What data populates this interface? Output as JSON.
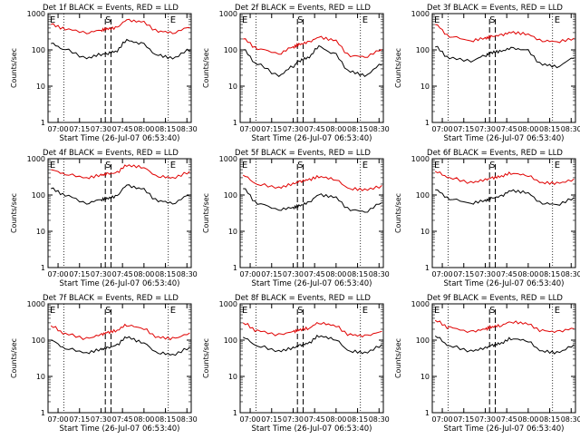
{
  "ylabel": "Counts/sec",
  "xlabel": "Start Time (26-Jul-07 06:53:40)",
  "x_ticks": [
    "07:00",
    "07:15",
    "07:30",
    "07:45",
    "08:00",
    "08:15",
    "08:30"
  ],
  "y_ticks": [
    "1",
    "10",
    "100",
    "1000"
  ],
  "markers": {
    "E": "E",
    "S": "S"
  },
  "colors": {
    "events": "#000000",
    "lld": "#e00000"
  },
  "chart_data": [
    {
      "type": "line",
      "title": "Det 1f BLACK = Events, RED = LLD",
      "ylim": [
        1,
        1000
      ],
      "log_y": true,
      "series": [
        {
          "name": "Events",
          "x": [
            "06:55",
            "07:05",
            "07:20",
            "07:30",
            "07:34",
            "07:40",
            "07:48",
            "07:58",
            "08:10",
            "08:20",
            "08:32"
          ],
          "values": [
            150,
            100,
            60,
            75,
            80,
            90,
            180,
            150,
            70,
            60,
            100
          ]
        },
        {
          "name": "LLD",
          "x": [
            "06:55",
            "07:05",
            "07:20",
            "07:30",
            "07:34",
            "07:40",
            "07:48",
            "07:58",
            "08:10",
            "08:20",
            "08:32"
          ],
          "values": [
            500,
            380,
            300,
            350,
            380,
            400,
            650,
            600,
            330,
            300,
            420
          ]
        }
      ]
    },
    {
      "type": "line",
      "title": "Det 2f BLACK = Events, RED = LLD",
      "ylim": [
        1,
        1000
      ],
      "log_y": true,
      "series": [
        {
          "name": "Events",
          "x": [
            "06:55",
            "07:05",
            "07:20",
            "07:30",
            "07:34",
            "07:40",
            "07:48",
            "07:58",
            "08:10",
            "08:20",
            "08:32"
          ],
          "values": [
            100,
            40,
            20,
            35,
            50,
            60,
            120,
            80,
            25,
            20,
            40
          ]
        },
        {
          "name": "LLD",
          "x": [
            "06:55",
            "07:05",
            "07:20",
            "07:30",
            "07:34",
            "07:40",
            "07:48",
            "07:58",
            "08:10",
            "08:20",
            "08:32"
          ],
          "values": [
            200,
            110,
            80,
            120,
            140,
            160,
            220,
            190,
            70,
            65,
            100
          ]
        }
      ]
    },
    {
      "type": "line",
      "title": "Det 3f BLACK = Events, RED = LLD",
      "ylim": [
        1,
        1000
      ],
      "log_y": true,
      "series": [
        {
          "name": "Events",
          "x": [
            "06:55",
            "07:05",
            "07:20",
            "07:30",
            "07:34",
            "07:40",
            "07:48",
            "07:58",
            "08:10",
            "08:20",
            "08:32"
          ],
          "values": [
            120,
            60,
            50,
            70,
            85,
            90,
            110,
            100,
            40,
            35,
            60
          ]
        },
        {
          "name": "LLD",
          "x": [
            "06:55",
            "07:05",
            "07:20",
            "07:30",
            "07:34",
            "07:40",
            "07:48",
            "07:58",
            "08:10",
            "08:20",
            "08:32"
          ],
          "values": [
            500,
            240,
            180,
            210,
            230,
            250,
            300,
            280,
            180,
            170,
            200
          ]
        }
      ]
    },
    {
      "type": "line",
      "title": "Det 4f BLACK = Events, RED = LLD",
      "ylim": [
        1,
        1000
      ],
      "log_y": true,
      "series": [
        {
          "name": "Events",
          "x": [
            "06:55",
            "07:05",
            "07:20",
            "07:30",
            "07:34",
            "07:40",
            "07:48",
            "07:58",
            "08:10",
            "08:20",
            "08:32"
          ],
          "values": [
            150,
            100,
            60,
            75,
            80,
            90,
            180,
            150,
            70,
            60,
            100
          ]
        },
        {
          "name": "LLD",
          "x": [
            "06:55",
            "07:05",
            "07:20",
            "07:30",
            "07:34",
            "07:40",
            "07:48",
            "07:58",
            "08:10",
            "08:20",
            "08:32"
          ],
          "values": [
            500,
            380,
            300,
            350,
            380,
            400,
            650,
            600,
            330,
            300,
            420
          ]
        }
      ]
    },
    {
      "type": "line",
      "title": "Det 5f BLACK = Events, RED = LLD",
      "ylim": [
        1,
        1000
      ],
      "log_y": true,
      "series": [
        {
          "name": "Events",
          "x": [
            "06:55",
            "07:05",
            "07:20",
            "07:30",
            "07:34",
            "07:40",
            "07:48",
            "07:58",
            "08:10",
            "08:20",
            "08:32"
          ],
          "values": [
            150,
            60,
            40,
            45,
            50,
            60,
            100,
            90,
            40,
            35,
            60
          ]
        },
        {
          "name": "LLD",
          "x": [
            "06:55",
            "07:05",
            "07:20",
            "07:30",
            "07:34",
            "07:40",
            "07:48",
            "07:58",
            "08:10",
            "08:20",
            "08:32"
          ],
          "values": [
            350,
            200,
            160,
            200,
            230,
            260,
            320,
            280,
            150,
            140,
            170
          ]
        }
      ]
    },
    {
      "type": "line",
      "title": "Det 6f BLACK = Events, RED = LLD",
      "ylim": [
        1,
        1000
      ],
      "log_y": true,
      "series": [
        {
          "name": "Events",
          "x": [
            "06:55",
            "07:05",
            "07:20",
            "07:30",
            "07:34",
            "07:40",
            "07:48",
            "07:58",
            "08:10",
            "08:20",
            "08:32"
          ],
          "values": [
            140,
            80,
            60,
            70,
            80,
            90,
            130,
            120,
            60,
            55,
            80
          ]
        },
        {
          "name": "LLD",
          "x": [
            "06:55",
            "07:05",
            "07:20",
            "07:30",
            "07:34",
            "07:40",
            "07:48",
            "07:58",
            "08:10",
            "08:20",
            "08:32"
          ],
          "values": [
            450,
            300,
            220,
            260,
            290,
            320,
            400,
            360,
            220,
            210,
            260
          ]
        }
      ]
    },
    {
      "type": "line",
      "title": "Det 7f BLACK = Events, RED = LLD",
      "ylim": [
        1,
        1000
      ],
      "log_y": true,
      "series": [
        {
          "name": "Events",
          "x": [
            "06:55",
            "07:05",
            "07:20",
            "07:30",
            "07:34",
            "07:40",
            "07:48",
            "07:58",
            "08:10",
            "08:20",
            "08:32"
          ],
          "values": [
            100,
            60,
            45,
            55,
            60,
            70,
            120,
            90,
            45,
            40,
            60
          ]
        },
        {
          "name": "LLD",
          "x": [
            "06:55",
            "07:05",
            "07:20",
            "07:30",
            "07:34",
            "07:40",
            "07:48",
            "07:58",
            "08:10",
            "08:20",
            "08:32"
          ],
          "values": [
            250,
            150,
            110,
            140,
            160,
            180,
            260,
            220,
            120,
            110,
            150
          ]
        }
      ]
    },
    {
      "type": "line",
      "title": "Det 8f BLACK = Events, RED = LLD",
      "ylim": [
        1,
        1000
      ],
      "log_y": true,
      "series": [
        {
          "name": "Events",
          "x": [
            "06:55",
            "07:05",
            "07:20",
            "07:30",
            "07:34",
            "07:40",
            "07:48",
            "07:58",
            "08:10",
            "08:20",
            "08:32"
          ],
          "values": [
            120,
            70,
            50,
            60,
            70,
            80,
            130,
            110,
            50,
            45,
            70
          ]
        },
        {
          "name": "LLD",
          "x": [
            "06:55",
            "07:05",
            "07:20",
            "07:30",
            "07:34",
            "07:40",
            "07:48",
            "07:58",
            "08:10",
            "08:20",
            "08:32"
          ],
          "values": [
            300,
            180,
            140,
            170,
            190,
            210,
            300,
            260,
            140,
            130,
            170
          ]
        }
      ]
    },
    {
      "type": "line",
      "title": "Det 9f BLACK = Events, RED = LLD",
      "ylim": [
        1,
        1000
      ],
      "log_y": true,
      "series": [
        {
          "name": "Events",
          "x": [
            "06:55",
            "07:05",
            "07:20",
            "07:30",
            "07:34",
            "07:40",
            "07:48",
            "07:58",
            "08:10",
            "08:20",
            "08:32"
          ],
          "values": [
            130,
            70,
            50,
            60,
            70,
            80,
            110,
            100,
            50,
            45,
            70
          ]
        },
        {
          "name": "LLD",
          "x": [
            "06:55",
            "07:05",
            "07:20",
            "07:30",
            "07:34",
            "07:40",
            "07:48",
            "07:58",
            "08:10",
            "08:20",
            "08:32"
          ],
          "values": [
            350,
            220,
            170,
            200,
            230,
            250,
            320,
            290,
            180,
            170,
            210
          ]
        }
      ]
    }
  ]
}
